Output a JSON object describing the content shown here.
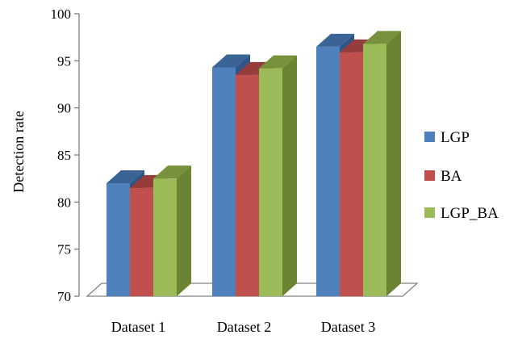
{
  "chart_data": {
    "type": "bar",
    "title": "",
    "xlabel": "",
    "ylabel": "Detection rate",
    "ylim": [
      70,
      100
    ],
    "yticks": [
      "70",
      "75",
      "80",
      "85",
      "90",
      "95",
      "100"
    ],
    "categories": [
      "Dataset 1",
      "Dataset 2",
      "Dataset 3"
    ],
    "series": [
      {
        "name": "LGP",
        "values": [
          82.0,
          94.3,
          96.5
        ]
      },
      {
        "name": "BA",
        "values": [
          81.5,
          93.5,
          95.9
        ]
      },
      {
        "name": "LGP_BA",
        "values": [
          82.5,
          94.2,
          96.8
        ]
      }
    ],
    "legend_position": "right",
    "grid": false,
    "colors": {
      "LGP": {
        "front": "#4F81BD",
        "top": "#3A6396",
        "side": "#2F5586"
      },
      "BA": {
        "front": "#C0504D",
        "top": "#963C3A",
        "side": "#8A3532"
      },
      "LGP_BA": {
        "front": "#9BBB59",
        "top": "#76923C",
        "side": "#6A8432"
      },
      "axis": "#808080"
    }
  }
}
